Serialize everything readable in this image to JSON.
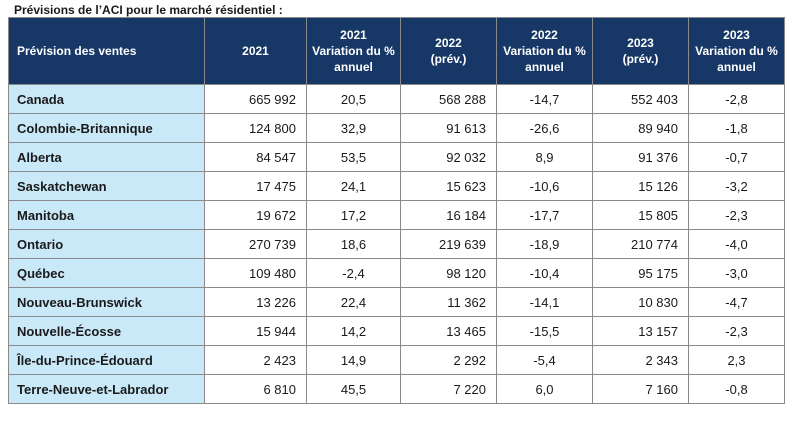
{
  "caption": "Prévisions de l’ACI pour le marché résidentiel :",
  "headers": [
    {
      "line1": "Prévision des ventes",
      "line2": "",
      "line3": ""
    },
    {
      "line1": "2021",
      "line2": "",
      "line3": ""
    },
    {
      "line1": "2021",
      "line2": "Variation du %",
      "line3": "annuel"
    },
    {
      "line1": "2022",
      "line2": "(prév.)",
      "line3": ""
    },
    {
      "line1": "2022",
      "line2": "Variation du %",
      "line3": "annuel"
    },
    {
      "line1": "2023",
      "line2": "(prév.)",
      "line3": ""
    },
    {
      "line1": "2023",
      "line2": "Variation du %",
      "line3": "annuel"
    }
  ],
  "rows": [
    {
      "region": "Canada",
      "v2021": "665 992",
      "p2021": "20,5",
      "v2022": "568 288",
      "p2022": "-14,7",
      "v2023": "552 403",
      "p2023": "-2,8"
    },
    {
      "region": "Colombie-Britannique",
      "v2021": "124 800",
      "p2021": "32,9",
      "v2022": "91 613",
      "p2022": "-26,6",
      "v2023": "89 940",
      "p2023": "-1,8"
    },
    {
      "region": "Alberta",
      "v2021": "84 547",
      "p2021": "53,5",
      "v2022": "92 032",
      "p2022": "8,9",
      "v2023": "91 376",
      "p2023": "-0,7"
    },
    {
      "region": "Saskatchewan",
      "v2021": "17 475",
      "p2021": "24,1",
      "v2022": "15 623",
      "p2022": "-10,6",
      "v2023": "15 126",
      "p2023": "-3,2"
    },
    {
      "region": "Manitoba",
      "v2021": "19 672",
      "p2021": "17,2",
      "v2022": "16 184",
      "p2022": "-17,7",
      "v2023": "15 805",
      "p2023": "-2,3"
    },
    {
      "region": "Ontario",
      "v2021": "270 739",
      "p2021": "18,6",
      "v2022": "219 639",
      "p2022": "-18,9",
      "v2023": "210 774",
      "p2023": "-4,0"
    },
    {
      "region": "Québec",
      "v2021": "109 480",
      "p2021": "-2,4",
      "v2022": "98 120",
      "p2022": "-10,4",
      "v2023": "95 175",
      "p2023": "-3,0"
    },
    {
      "region": "Nouveau-Brunswick",
      "v2021": "13 226",
      "p2021": "22,4",
      "v2022": "11 362",
      "p2022": "-14,1",
      "v2023": "10 830",
      "p2023": "-4,7"
    },
    {
      "region": "Nouvelle-Écosse",
      "v2021": "15 944",
      "p2021": "14,2",
      "v2022": "13 465",
      "p2022": "-15,5",
      "v2023": "13 157",
      "p2023": "-2,3"
    },
    {
      "region": "Île-du-Prince-Édouard",
      "v2021": "2 423",
      "p2021": "14,9",
      "v2022": "2 292",
      "p2022": "-5,4",
      "v2023": "2 343",
      "p2023": "2,3"
    },
    {
      "region": "Terre-Neuve-et-Labrador",
      "v2021": "6 810",
      "p2021": "45,5",
      "v2022": "7 220",
      "p2022": "6,0",
      "v2023": "7 160",
      "p2023": "-0,8"
    }
  ],
  "colors": {
    "header_bg": "#173866",
    "label_bg": "#c9e9f8",
    "border": "#8a8a8a"
  }
}
